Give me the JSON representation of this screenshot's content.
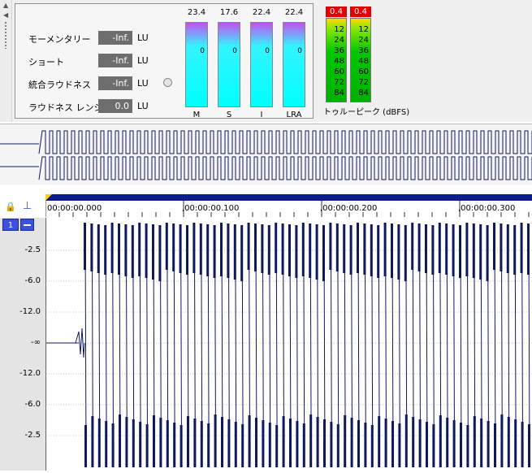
{
  "loudness": {
    "rows": [
      {
        "label": "モーメンタリー",
        "value": "-Inf.",
        "unit": "LU"
      },
      {
        "label": "ショート",
        "value": "-Inf.",
        "unit": "LU"
      },
      {
        "label": "統合ラウドネス",
        "value": "-Inf.",
        "unit": "LU"
      },
      {
        "label": "ラウドネス レンジ",
        "value": "0.0",
        "unit": "LU"
      }
    ],
    "meters": [
      {
        "name": "M",
        "top": "23.4",
        "zero": "0"
      },
      {
        "name": "S",
        "top": "17.6",
        "zero": "0"
      },
      {
        "name": "I",
        "top": "22.4",
        "zero": "0"
      },
      {
        "name": "LRA",
        "top": "22.4",
        "zero": "0"
      }
    ],
    "peak_left": "0.4",
    "peak_right": "0.4",
    "peak_ticks": [
      "12",
      "24",
      "36",
      "48",
      "60",
      "72",
      "84"
    ],
    "peak_label": "トゥルーピーク (dBFS)"
  },
  "timeline": {
    "labels": [
      "00:00:00.000",
      ",00:00:00.100",
      ",00:00:00.200",
      ",00:00:00.300"
    ]
  },
  "channel": {
    "number": "1"
  },
  "db_scale": [
    "-2.5",
    "-6.0",
    "-12.0",
    "-∞",
    "-12.0",
    "-6.0",
    "-2.5"
  ],
  "colors": {
    "waveform": "#0f1a5c",
    "meter_peak": "#e00000",
    "timeline": "#0b1d8c"
  }
}
